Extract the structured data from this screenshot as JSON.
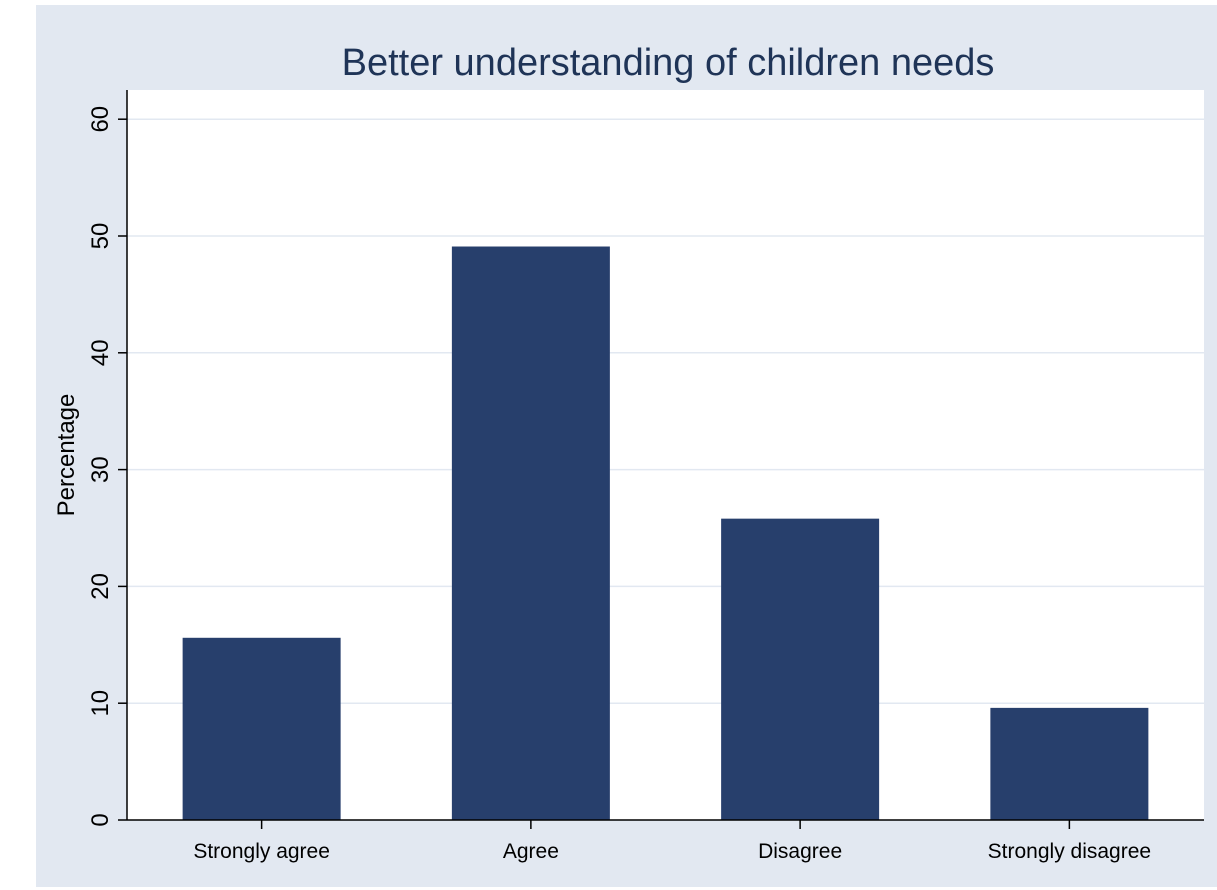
{
  "chart_data": {
    "type": "bar",
    "title": "Better understanding of children needs",
    "xlabel": "",
    "ylabel": "Percentage",
    "categories": [
      "Strongly agree",
      "Agree",
      "Disagree",
      "Strongly disagree"
    ],
    "values": [
      15.6,
      49.1,
      25.8,
      9.6
    ],
    "ylim": [
      0,
      62.5
    ],
    "yticks": [
      0,
      10,
      20,
      30,
      40,
      50,
      60
    ],
    "ytick_labels": [
      "0",
      "10",
      "20",
      "30",
      "40",
      "50",
      "60"
    ],
    "grid": true,
    "legend": "none",
    "colors": {
      "bar": "#273f6c",
      "plot_background": "#ffffff",
      "graph_background": "#e2e8f1",
      "gridline": "#e2e8f1",
      "title": "#1f3457"
    }
  }
}
